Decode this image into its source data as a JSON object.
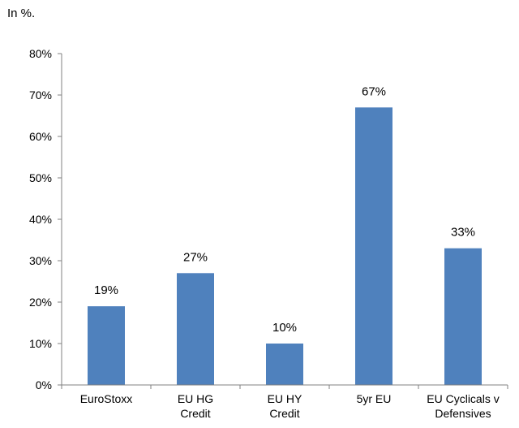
{
  "chart_data": {
    "type": "bar",
    "note": "In %.",
    "categories": [
      [
        "EuroStoxx"
      ],
      [
        "EU HG",
        "Credit"
      ],
      [
        "EU HY",
        "Credit"
      ],
      [
        "5yr EU"
      ],
      [
        "EU Cyclicals v",
        "Defensives"
      ]
    ],
    "values": [
      19,
      27,
      10,
      67,
      33
    ],
    "value_labels": [
      "19%",
      "27%",
      "10%",
      "67%",
      "33%"
    ],
    "yticks": [
      "0%",
      "10%",
      "20%",
      "30%",
      "40%",
      "50%",
      "60%",
      "70%",
      "80%"
    ],
    "ylim": [
      0,
      80
    ],
    "bar_color": "#4F81BD",
    "grid": false,
    "legend": "none"
  }
}
